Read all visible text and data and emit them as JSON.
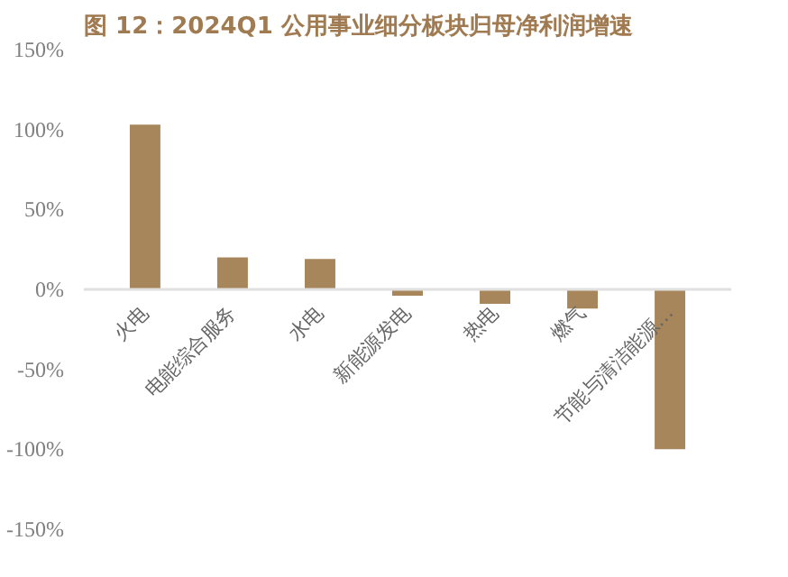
{
  "chart_data": {
    "type": "bar",
    "title": "图 12：2024Q1 公用事业细分板块归母净利润增速",
    "categories": [
      "火电",
      "电能综合服务",
      "水电",
      "新能源发电",
      "热电",
      "燃气",
      "节能与清洁能源…"
    ],
    "values": [
      103,
      20,
      19,
      -4,
      -9,
      -12,
      -100
    ],
    "color": "#a8865c",
    "ylim": [
      -150,
      150
    ],
    "yticks": [
      {
        "value": -150,
        "label": "-150%"
      },
      {
        "value": -100,
        "label": "-100%"
      },
      {
        "value": -50,
        "label": "-50%"
      },
      {
        "value": 0,
        "label": "0%"
      },
      {
        "value": 50,
        "label": "50%"
      },
      {
        "value": 100,
        "label": "100%"
      },
      {
        "value": 150,
        "label": "150%"
      }
    ],
    "grid": false
  }
}
